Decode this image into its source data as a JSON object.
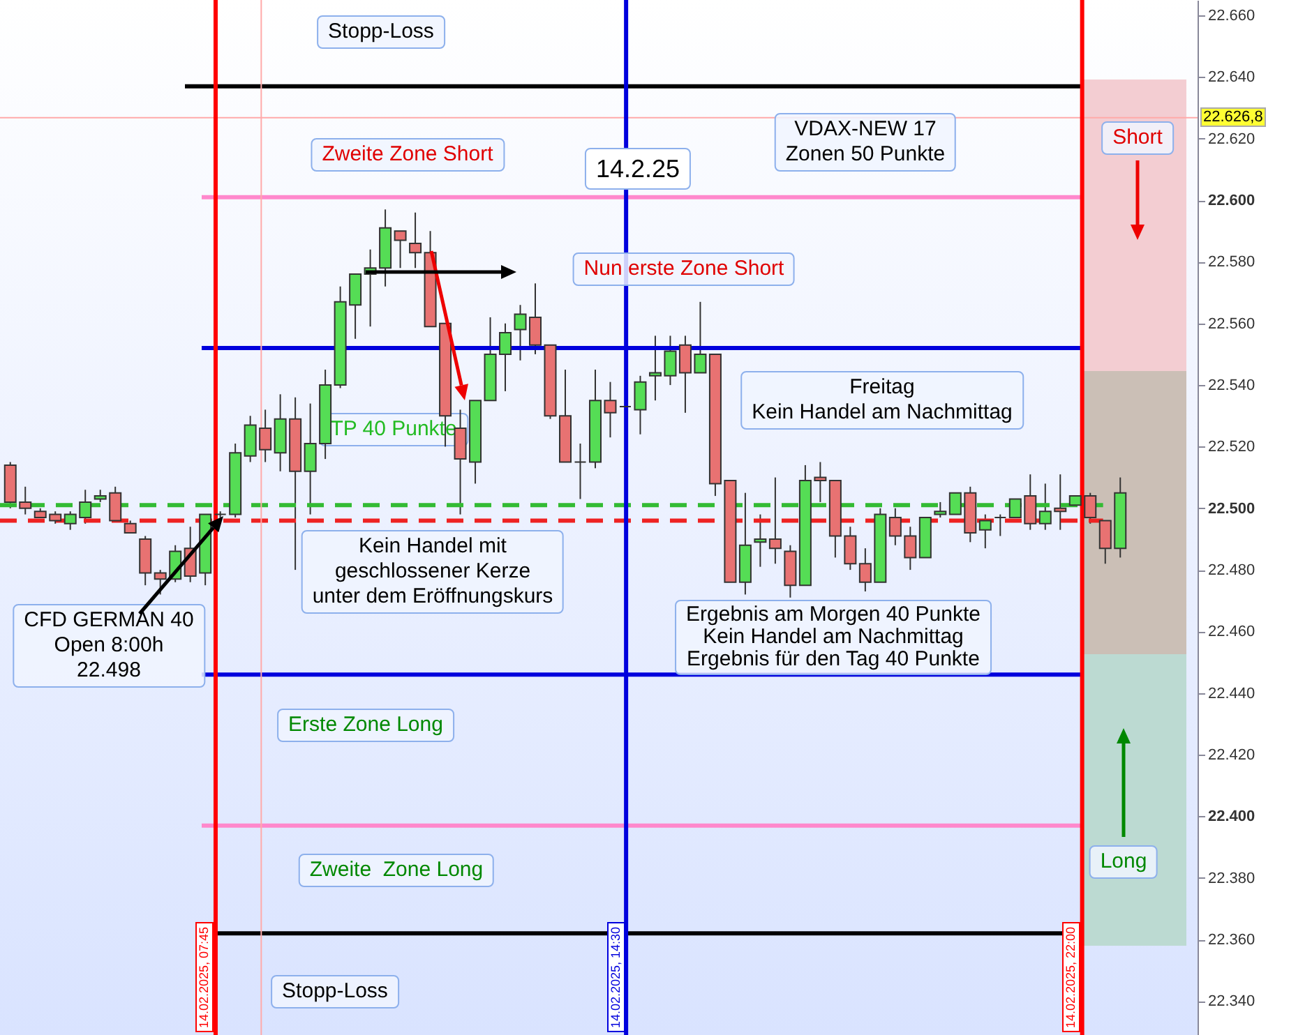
{
  "chart_data": {
    "type": "candlestick",
    "categories": [
      null,
      null,
      null,
      null,
      null,
      null,
      null,
      null,
      null,
      null,
      null,
      null,
      null,
      null,
      null,
      null,
      null,
      null,
      null,
      null,
      null,
      null,
      null,
      null,
      null,
      null,
      null,
      null,
      null,
      null,
      null,
      null,
      null,
      null,
      null,
      null,
      null,
      null,
      null,
      null,
      null,
      null,
      null,
      null,
      null,
      null,
      null,
      null,
      null,
      null,
      null,
      null,
      null,
      null,
      null,
      null,
      null,
      null,
      null,
      null,
      null,
      null,
      null,
      null,
      null,
      null,
      null,
      null,
      null,
      null,
      null,
      null,
      null,
      null,
      null
    ],
    "ohlc": [
      [
        22514,
        22515,
        22500,
        22502
      ],
      [
        22502,
        22507,
        22498,
        22500
      ],
      [
        22499,
        22500,
        22497,
        22497
      ],
      [
        22498,
        22499,
        22495,
        22496
      ],
      [
        22495,
        22499,
        22493,
        22498
      ],
      [
        22497,
        22506,
        22495,
        22502
      ],
      [
        22503,
        22506,
        22502,
        22504
      ],
      [
        22505,
        22507,
        22496,
        22496
      ],
      [
        22495,
        22496,
        22492,
        22492
      ],
      [
        22490,
        22491,
        22475,
        22479
      ],
      [
        22479,
        22480,
        22472,
        22477
      ],
      [
        22477,
        22488,
        22476,
        22486
      ],
      [
        22487,
        22494,
        22476,
        22478
      ],
      [
        22479,
        22498,
        22475,
        22498
      ],
      [
        22498,
        22499,
        22497,
        22498
      ],
      [
        22498,
        22521,
        22497,
        22518
      ],
      [
        22517,
        22530,
        22515,
        22527
      ],
      [
        22526,
        22532,
        22515,
        22519
      ],
      [
        22518,
        22537,
        22512,
        22529
      ],
      [
        22529,
        22536,
        22480,
        22512
      ],
      [
        22512,
        22534,
        22498,
        22521
      ],
      [
        22521,
        22545,
        22516,
        22540
      ],
      [
        22540,
        22572,
        22539,
        22567
      ],
      [
        22566,
        22576,
        22555,
        22576
      ],
      [
        22576,
        22584,
        22559,
        22578
      ],
      [
        22578,
        22597,
        22572,
        22591
      ],
      [
        22590,
        22590,
        22578,
        22587
      ],
      [
        22586,
        22596,
        22578,
        22583
      ],
      [
        22583,
        22590,
        22559,
        22559
      ],
      [
        22560,
        22560,
        22520,
        22530
      ],
      [
        22526,
        22532,
        22498,
        22516
      ],
      [
        22515,
        22535,
        22508,
        22535
      ],
      [
        22535,
        22562,
        22535,
        22550
      ],
      [
        22550,
        22560,
        22538,
        22557
      ],
      [
        22558,
        22566,
        22548,
        22563
      ],
      [
        22562,
        22573,
        22550,
        22553
      ],
      [
        22553,
        22553,
        22529,
        22530
      ],
      [
        22530,
        22545,
        22515,
        22515
      ],
      [
        22515,
        22521,
        22503,
        22515
      ],
      [
        22515,
        22545,
        22513,
        22535
      ],
      [
        22535,
        22541,
        22523,
        22531
      ],
      [
        22533,
        22534,
        22532,
        22533
      ],
      [
        22532,
        22543,
        22524,
        22541
      ],
      [
        22543,
        22556,
        22535,
        22544
      ],
      [
        22543,
        22556,
        22540,
        22551
      ],
      [
        22553,
        22556,
        22531,
        22544
      ],
      [
        22544,
        22567,
        22544,
        22550
      ],
      [
        22550,
        22550,
        22504,
        22508
      ],
      [
        22509,
        22509,
        22476,
        22476
      ],
      [
        22476,
        22505,
        22472,
        22488
      ],
      [
        22489,
        22498,
        22481,
        22490
      ],
      [
        22490,
        22510,
        22482,
        22487
      ],
      [
        22486,
        22488,
        22471,
        22475
      ],
      [
        22475,
        22514,
        22475,
        22509
      ],
      [
        22510,
        22515,
        22502,
        22509
      ],
      [
        22509,
        22509,
        22484,
        22491
      ],
      [
        22491,
        22494,
        22480,
        22482
      ],
      [
        22482,
        22487,
        22473,
        22476
      ],
      [
        22476,
        22500,
        22476,
        22498
      ],
      [
        22497,
        22500,
        22488,
        22491
      ],
      [
        22491,
        22494,
        22480,
        22484
      ],
      [
        22484,
        22497,
        22484,
        22497
      ],
      [
        22498,
        22502,
        22497,
        22499
      ],
      [
        22498,
        22505,
        22498,
        22505
      ],
      [
        22505,
        22507,
        22489,
        22492
      ],
      [
        22493,
        22498,
        22487,
        22496
      ],
      [
        22497,
        22498,
        22491,
        22497
      ],
      [
        22497,
        22503,
        22497,
        22503
      ],
      [
        22504,
        22511,
        22493,
        22495
      ],
      [
        22495,
        22508,
        22493,
        22499
      ],
      [
        22500,
        22511,
        22493,
        22499
      ],
      [
        22501,
        22504,
        22501,
        22504
      ],
      [
        22504,
        22505,
        22495,
        22497
      ],
      [
        22496,
        22496,
        22482,
        22487
      ],
      [
        22487,
        22510,
        22484,
        22505
      ]
    ],
    "ylim": [
      22329,
      22665
    ],
    "yticks": [
      {
        "value": 22340,
        "label": "22.340"
      },
      {
        "value": 22360,
        "label": "22.360"
      },
      {
        "value": 22380,
        "label": "22.380"
      },
      {
        "value": 22400,
        "label": "22.400"
      },
      {
        "value": 22420,
        "label": "22.420"
      },
      {
        "value": 22440,
        "label": "22.440"
      },
      {
        "value": 22460,
        "label": "22.460"
      },
      {
        "value": 22480,
        "label": "22.480"
      },
      {
        "value": 22500,
        "label": "22.500"
      },
      {
        "value": 22520,
        "label": "22.520"
      },
      {
        "value": 22540,
        "label": "22.540"
      },
      {
        "value": 22560,
        "label": "22.560"
      },
      {
        "value": 22580,
        "label": "22.580"
      },
      {
        "value": 22600,
        "label": "22.600"
      },
      {
        "value": 22620,
        "label": "22.620"
      },
      {
        "value": 22640,
        "label": "22.640"
      },
      {
        "value": 22660,
        "label": "22.660"
      }
    ],
    "tick_labels": "y",
    "ref_lines": [
      {
        "axis": "y",
        "value": 22637,
        "color": "#000000"
      },
      {
        "axis": "y",
        "value": 22601,
        "color": "#ff88cc"
      },
      {
        "axis": "y",
        "value": 22552,
        "color": "#0000dd"
      },
      {
        "axis": "y",
        "value": 22446,
        "color": "#0000dd"
      },
      {
        "axis": "y",
        "value": 22397,
        "color": "#ff88cc"
      },
      {
        "axis": "y",
        "value": 22362,
        "color": "#000000"
      },
      {
        "axis": "y",
        "value": 22501,
        "color": "#33bb33",
        "line_style": "dashed"
      },
      {
        "axis": "y",
        "value": 22496,
        "color": "#ee2222",
        "line_style": "dashed"
      },
      {
        "axis": "y",
        "value": 22626.8,
        "label": "22.626,8",
        "color": "#ffaaaa"
      }
    ],
    "annotations": [
      "Stopp-Loss",
      "Zweite Zone Short",
      "14.2.25",
      "VDAX-NEW 17\nZonen 50 Punkte",
      "Nun erste Zone Short",
      "Freitag\nKein Handel am Nachmittag",
      "TP 40 Punkte",
      "Kein Handel mit\ngeschlossener Kerze\nunter dem Eröffnungskurs",
      "CFD GERMAN 40\nOpen 8:00h\n22.498",
      "Ergebnis am Morgen 40 Punkte\nKein Handel am Nachmittag\nErgebnis für den Tag 40 Punkte",
      "Erste Zone Long",
      "Zweite  Zone Long",
      "Stopp-Loss",
      "14.02.2025, 07:45",
      "14.02.2025, 14:30",
      "14.02.2025, 22:00",
      "Short",
      "Long"
    ]
  }
}
